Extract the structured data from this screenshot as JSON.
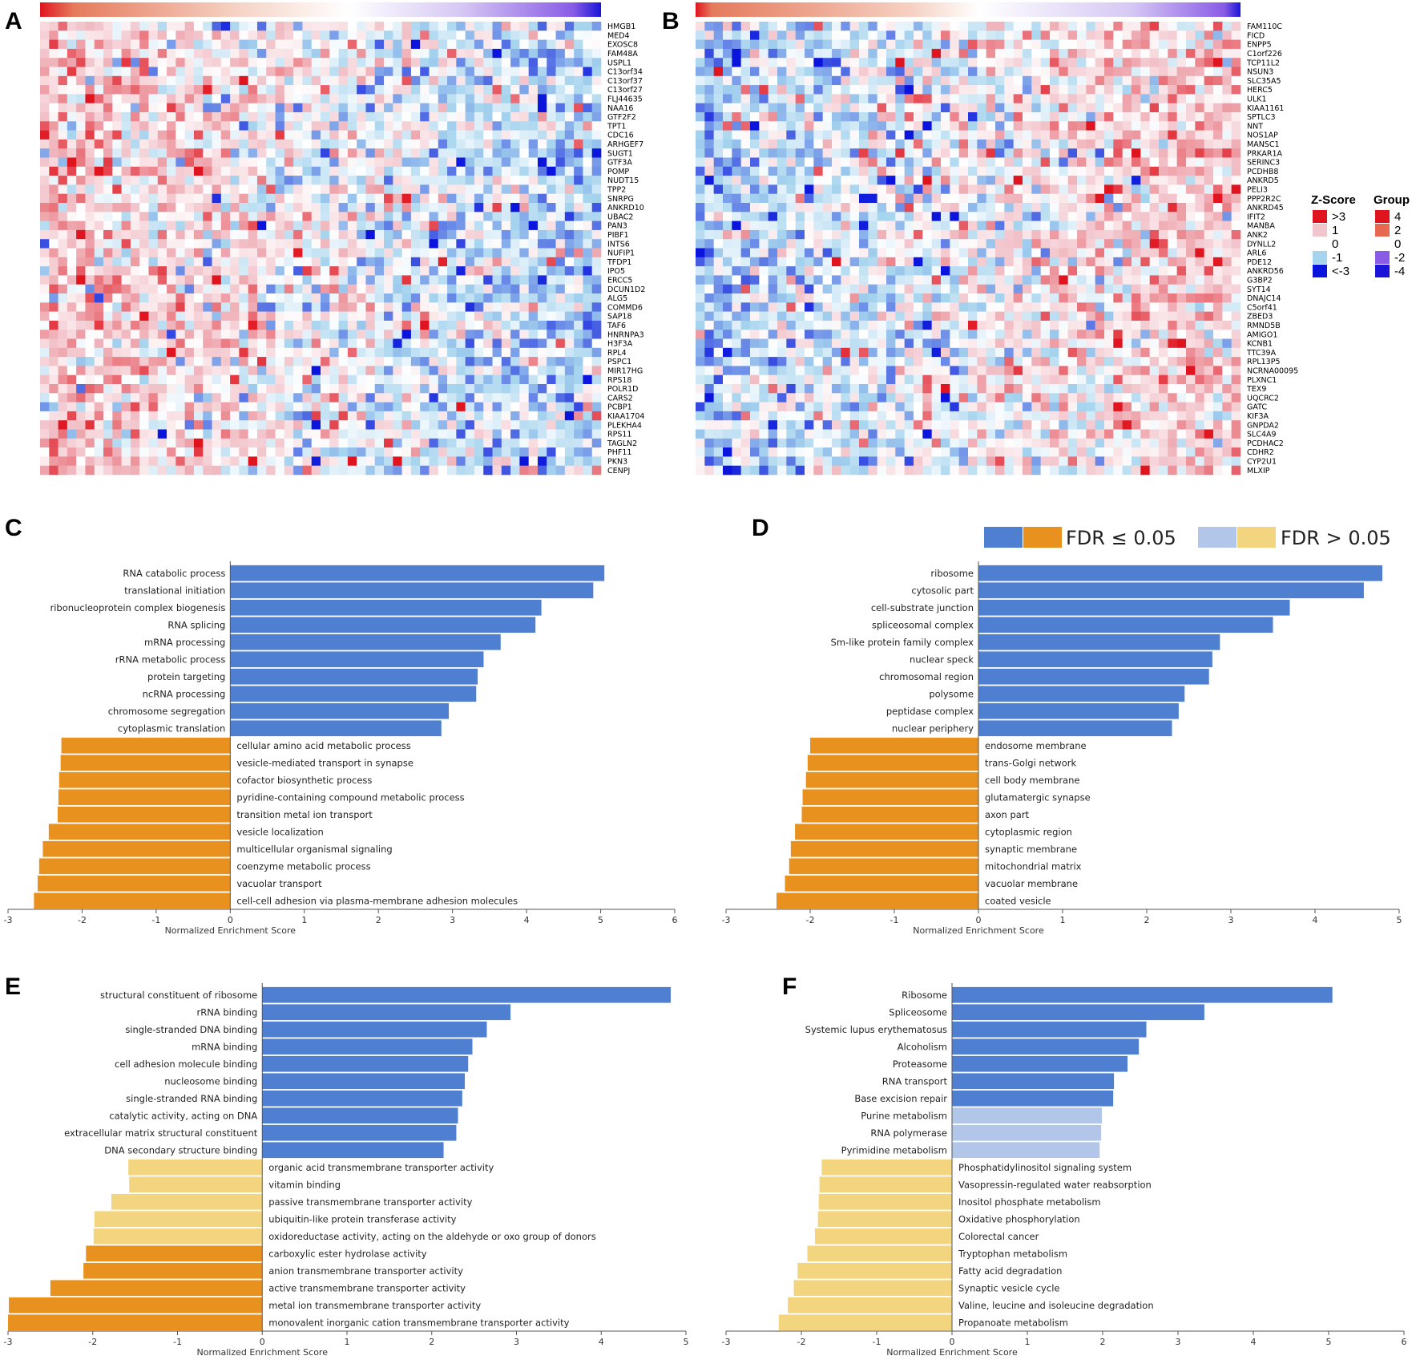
{
  "figure": {
    "panel_letters": [
      "A",
      "B",
      "C",
      "D",
      "E",
      "F"
    ]
  },
  "legend": {
    "zscore_title": "Z-Score",
    "group_title": "Group",
    "zscore_items": [
      {
        "label": ">3",
        "color": "#e0141e"
      },
      {
        "label": "1",
        "color": "#f2c4cb"
      },
      {
        "label": "0",
        "color": "#ffffff"
      },
      {
        "label": "-1",
        "color": "#a6d4ee"
      },
      {
        "label": "<-3",
        "color": "#0a14dc"
      }
    ],
    "group_items": [
      {
        "label": "4",
        "color": "#e0141e"
      },
      {
        "label": "2",
        "color": "#e5684f"
      },
      {
        "label": "0",
        "color": "#ffffff"
      },
      {
        "label": "-2",
        "color": "#8a5ce6"
      },
      {
        "label": "-4",
        "color": "#1a14d8"
      }
    ]
  },
  "fdr_legend": {
    "sig_label": "FDR ≤ 0.05",
    "nonsig_label": "FDR > 0.05",
    "colors": {
      "pos_sig": "#4f7fd0",
      "neg_sig": "#e8911e",
      "pos_nonsig": "#b1c6e9",
      "neg_nonsig": "#f3d57f"
    }
  },
  "chart_data": [
    {
      "panel": "A",
      "type": "heatmap",
      "columns": 62,
      "rows": [
        "HMGB1",
        "MED4",
        "EXOSC8",
        "FAM48A",
        "USPL1",
        "C13orf34",
        "C13orf37",
        "C13orf27",
        "FLJ44635",
        "NAA16",
        "GTF2F2",
        "TPT1",
        "CDC16",
        "ARHGEF7",
        "SUGT1",
        "GTF3A",
        "POMP",
        "NUDT15",
        "TPP2",
        "SNRPG",
        "ANKRD10",
        "UBAC2",
        "PAN3",
        "PIBF1",
        "INTS6",
        "NUFIP1",
        "TFDP1",
        "IPO5",
        "ERCC5",
        "DCUN1D2",
        "ALG5",
        "COMMD6",
        "SAP18",
        "TAF6",
        "HNRNPA3",
        "H3F3A",
        "RPL4",
        "PSPC1",
        "MIR17HG",
        "RPS18",
        "POLR1D",
        "CARS2",
        "PCBP1",
        "KIAA1704",
        "PLEKHA4",
        "RPS11",
        "TAGLN2",
        "PHF11",
        "PKN3",
        "CENPJ"
      ],
      "group_gradient": [
        "#e0141e",
        "#e88a70",
        "#ffffff",
        "#9a7fe8",
        "#1a14d8"
      ],
      "pattern": "red-left-blue-right"
    },
    {
      "panel": "B",
      "type": "heatmap",
      "columns": 60,
      "rows": [
        "FAM110C",
        "FICD",
        "ENPP5",
        "C1orf226",
        "TCP11L2",
        "NSUN3",
        "SLC35A5",
        "HERC5",
        "ULK1",
        "KIAA1161",
        "SPTLC3",
        "NNT",
        "NOS1AP",
        "MANSC1",
        "PRKAR1A",
        "SERINC3",
        "PCDHB8",
        "ANKRD5",
        "PELI3",
        "PPP2R2C",
        "ANKRD45",
        "IFIT2",
        "MANBA",
        "ANK2",
        "DYNLL2",
        "ARL6",
        "PDE12",
        "ANKRD56",
        "G3BP2",
        "SYT14",
        "DNAJC14",
        "C5orf41",
        "ZBED3",
        "RMND5B",
        "AMIGO1",
        "KCNB1",
        "TTC39A",
        "RPL13P5",
        "NCRNA00095",
        "PLXNC1",
        "TEX9",
        "UQCRC2",
        "GATC",
        "KIF3A",
        "GNPDA2",
        "SLC4A9",
        "PCDHAC2",
        "CDHR2",
        "CYP2U1",
        "MLXIP"
      ],
      "group_gradient": [
        "#e0141e",
        "#e88a70",
        "#ffffff",
        "#9a7fe8",
        "#1a14d8"
      ],
      "pattern": "blue-left-red-right"
    },
    {
      "panel": "C",
      "type": "bar",
      "orientation": "horizontal",
      "xlabel": "Normalized Enrichment Score",
      "xlim": [
        -3,
        6
      ],
      "xticks": [
        "-3",
        "-2",
        "-1",
        "0",
        "1",
        "2",
        "3",
        "4",
        "5",
        "6"
      ],
      "series": [
        {
          "label": "RNA catabolic process",
          "value": 5.05,
          "fdr_sig": true
        },
        {
          "label": "translational initiation",
          "value": 4.9,
          "fdr_sig": true
        },
        {
          "label": "ribonucleoprotein complex biogenesis",
          "value": 4.2,
          "fdr_sig": true
        },
        {
          "label": "RNA splicing",
          "value": 4.12,
          "fdr_sig": true
        },
        {
          "label": "mRNA processing",
          "value": 3.65,
          "fdr_sig": true
        },
        {
          "label": "rRNA metabolic process",
          "value": 3.42,
          "fdr_sig": true
        },
        {
          "label": "protein targeting",
          "value": 3.34,
          "fdr_sig": true
        },
        {
          "label": "ncRNA processing",
          "value": 3.32,
          "fdr_sig": true
        },
        {
          "label": "chromosome segregation",
          "value": 2.95,
          "fdr_sig": true
        },
        {
          "label": "cytoplasmic translation",
          "value": 2.85,
          "fdr_sig": true
        },
        {
          "label": "cellular amino acid metabolic process",
          "value": -2.28,
          "fdr_sig": true
        },
        {
          "label": "vesicle-mediated transport in synapse",
          "value": -2.29,
          "fdr_sig": true
        },
        {
          "label": "cofactor biosynthetic process",
          "value": -2.31,
          "fdr_sig": true
        },
        {
          "label": "pyridine-containing compound metabolic process",
          "value": -2.32,
          "fdr_sig": true
        },
        {
          "label": "transition metal ion transport",
          "value": -2.33,
          "fdr_sig": true
        },
        {
          "label": "vesicle localization",
          "value": -2.45,
          "fdr_sig": true
        },
        {
          "label": "multicellular organismal signaling",
          "value": -2.53,
          "fdr_sig": true
        },
        {
          "label": "coenzyme metabolic process",
          "value": -2.58,
          "fdr_sig": true
        },
        {
          "label": "vacuolar transport",
          "value": -2.6,
          "fdr_sig": true
        },
        {
          "label": "cell-cell adhesion via plasma-membrane adhesion molecules",
          "value": -2.65,
          "fdr_sig": true
        }
      ]
    },
    {
      "panel": "D",
      "type": "bar",
      "orientation": "horizontal",
      "xlabel": "Normalized Enrichment Score",
      "xlim": [
        -3,
        5
      ],
      "xticks": [
        "-3",
        "-2",
        "-1",
        "0",
        "1",
        "2",
        "3",
        "4",
        "5"
      ],
      "series": [
        {
          "label": "ribosome",
          "value": 4.8,
          "fdr_sig": true
        },
        {
          "label": "cytosolic part",
          "value": 4.58,
          "fdr_sig": true
        },
        {
          "label": "cell-substrate junction",
          "value": 3.7,
          "fdr_sig": true
        },
        {
          "label": "spliceosomal complex",
          "value": 3.5,
          "fdr_sig": true
        },
        {
          "label": "Sm-like protein family complex",
          "value": 2.87,
          "fdr_sig": true
        },
        {
          "label": "nuclear speck",
          "value": 2.78,
          "fdr_sig": true
        },
        {
          "label": "chromosomal region",
          "value": 2.74,
          "fdr_sig": true
        },
        {
          "label": "polysome",
          "value": 2.45,
          "fdr_sig": true
        },
        {
          "label": "peptidase complex",
          "value": 2.38,
          "fdr_sig": true
        },
        {
          "label": "nuclear periphery",
          "value": 2.3,
          "fdr_sig": true
        },
        {
          "label": "endosome membrane",
          "value": -2.0,
          "fdr_sig": true
        },
        {
          "label": "trans-Golgi network",
          "value": -2.03,
          "fdr_sig": true
        },
        {
          "label": "cell body membrane",
          "value": -2.05,
          "fdr_sig": true
        },
        {
          "label": "glutamatergic synapse",
          "value": -2.09,
          "fdr_sig": true
        },
        {
          "label": "axon part",
          "value": -2.1,
          "fdr_sig": true
        },
        {
          "label": "cytoplasmic region",
          "value": -2.18,
          "fdr_sig": true
        },
        {
          "label": "synaptic membrane",
          "value": -2.23,
          "fdr_sig": true
        },
        {
          "label": "mitochondrial matrix",
          "value": -2.25,
          "fdr_sig": true
        },
        {
          "label": "vacuolar membrane",
          "value": -2.3,
          "fdr_sig": true
        },
        {
          "label": "coated vesicle",
          "value": -2.4,
          "fdr_sig": true
        }
      ]
    },
    {
      "panel": "E",
      "type": "bar",
      "orientation": "horizontal",
      "xlabel": "Normalized Enrichment Score",
      "xlim": [
        -3,
        5
      ],
      "xticks": [
        "-3",
        "-2",
        "-1",
        "0",
        "1",
        "2",
        "3",
        "4",
        "5"
      ],
      "series": [
        {
          "label": "structural constituent of ribosome",
          "value": 4.82,
          "fdr_sig": true
        },
        {
          "label": "rRNA binding",
          "value": 2.93,
          "fdr_sig": true
        },
        {
          "label": "single-stranded DNA binding",
          "value": 2.65,
          "fdr_sig": true
        },
        {
          "label": "mRNA binding",
          "value": 2.48,
          "fdr_sig": true
        },
        {
          "label": "cell adhesion molecule binding",
          "value": 2.43,
          "fdr_sig": true
        },
        {
          "label": "nucleosome binding",
          "value": 2.39,
          "fdr_sig": true
        },
        {
          "label": "single-stranded RNA binding",
          "value": 2.36,
          "fdr_sig": true
        },
        {
          "label": "catalytic activity, acting on DNA",
          "value": 2.31,
          "fdr_sig": true
        },
        {
          "label": "extracellular matrix structural constituent",
          "value": 2.29,
          "fdr_sig": true
        },
        {
          "label": "DNA secondary structure binding",
          "value": 2.14,
          "fdr_sig": true
        },
        {
          "label": "organic acid transmembrane transporter activity",
          "value": -1.58,
          "fdr_sig": false
        },
        {
          "label": "vitamin binding",
          "value": -1.57,
          "fdr_sig": false
        },
        {
          "label": "passive transmembrane transporter activity",
          "value": -1.78,
          "fdr_sig": false
        },
        {
          "label": "ubiquitin-like protein transferase activity",
          "value": -1.98,
          "fdr_sig": false
        },
        {
          "label": "oxidoreductase activity, acting on the aldehyde or oxo group of donors",
          "value": -1.99,
          "fdr_sig": false
        },
        {
          "label": "carboxylic ester hydrolase activity",
          "value": -2.08,
          "fdr_sig": true
        },
        {
          "label": "anion transmembrane transporter activity",
          "value": -2.11,
          "fdr_sig": true
        },
        {
          "label": "active transmembrane transporter activity",
          "value": -2.5,
          "fdr_sig": true
        },
        {
          "label": "metal ion transmembrane transporter activity",
          "value": -2.99,
          "fdr_sig": true
        },
        {
          "label": "monovalent inorganic cation transmembrane transporter activity",
          "value": -3.0,
          "fdr_sig": true
        }
      ]
    },
    {
      "panel": "F",
      "type": "bar",
      "orientation": "horizontal",
      "xlabel": "Normalized Enrichment Score",
      "xlim": [
        -3,
        6
      ],
      "xticks": [
        "-3",
        "-2",
        "-1",
        "0",
        "1",
        "2",
        "3",
        "4",
        "5",
        "6"
      ],
      "series": [
        {
          "label": "Ribosome",
          "value": 5.05,
          "fdr_sig": true
        },
        {
          "label": "Spliceosome",
          "value": 3.35,
          "fdr_sig": true
        },
        {
          "label": "Systemic lupus erythematosus",
          "value": 2.58,
          "fdr_sig": true
        },
        {
          "label": "Alcoholism",
          "value": 2.48,
          "fdr_sig": true
        },
        {
          "label": "Proteasome",
          "value": 2.33,
          "fdr_sig": true
        },
        {
          "label": "RNA transport",
          "value": 2.15,
          "fdr_sig": true
        },
        {
          "label": "Base excision repair",
          "value": 2.14,
          "fdr_sig": true
        },
        {
          "label": "Purine metabolism",
          "value": 1.99,
          "fdr_sig": false
        },
        {
          "label": "RNA polymerase",
          "value": 1.98,
          "fdr_sig": false
        },
        {
          "label": "Pyrimidine metabolism",
          "value": 1.96,
          "fdr_sig": false
        },
        {
          "label": "Phosphatidylinositol signaling system",
          "value": -1.73,
          "fdr_sig": false
        },
        {
          "label": "Vasopressin-regulated water reabsorption",
          "value": -1.76,
          "fdr_sig": false
        },
        {
          "label": "Inositol phosphate metabolism",
          "value": -1.77,
          "fdr_sig": false
        },
        {
          "label": "Oxidative phosphorylation",
          "value": -1.78,
          "fdr_sig": false
        },
        {
          "label": "Colorectal cancer",
          "value": -1.82,
          "fdr_sig": false
        },
        {
          "label": "Tryptophan metabolism",
          "value": -1.92,
          "fdr_sig": false
        },
        {
          "label": "Fatty acid degradation",
          "value": -2.05,
          "fdr_sig": false
        },
        {
          "label": "Synaptic vesicle cycle",
          "value": -2.1,
          "fdr_sig": false
        },
        {
          "label": "Valine, leucine and isoleucine degradation",
          "value": -2.18,
          "fdr_sig": false
        },
        {
          "label": "Propanoate metabolism",
          "value": -2.3,
          "fdr_sig": false
        }
      ]
    }
  ]
}
